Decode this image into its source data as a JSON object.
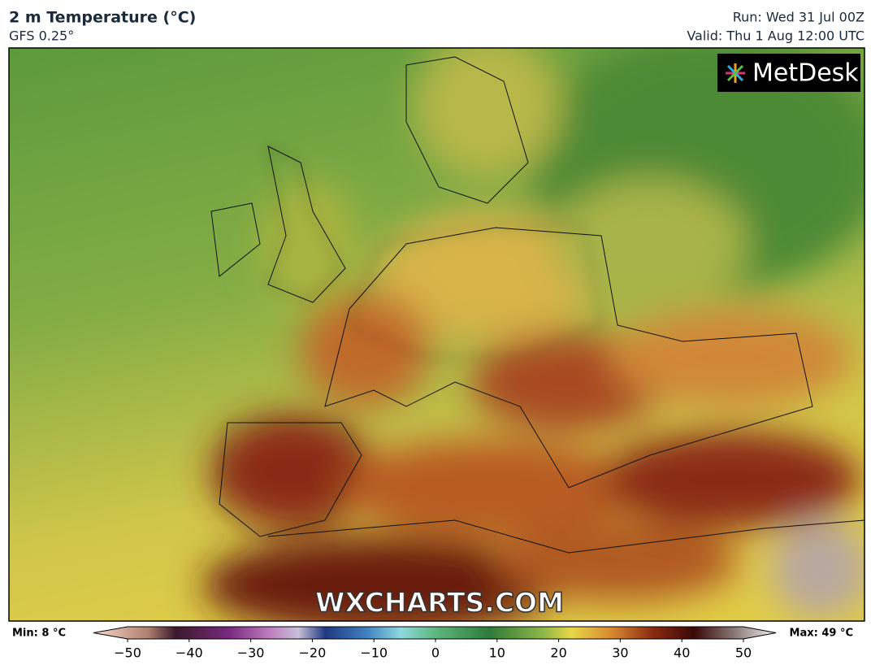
{
  "header": {
    "title": "2 m Temperature (°C)",
    "model": "GFS 0.25°",
    "run": "Run: Wed 31 Jul 00Z",
    "valid": "Valid: Thu 1 Aug 12:00 UTC"
  },
  "logo": "MetDesk",
  "watermark": "WXCHARTS.COM",
  "colorbar": {
    "min_label": "Min: 8 °C",
    "max_label": "Max: 49 °C",
    "ticks": [
      {
        "value": -50,
        "label": "−50"
      },
      {
        "value": -40,
        "label": "−40"
      },
      {
        "value": -30,
        "label": "−30"
      },
      {
        "value": -20,
        "label": "−20"
      },
      {
        "value": -10,
        "label": "−10"
      },
      0,
      10,
      20,
      30,
      40,
      50
    ]
  }
}
